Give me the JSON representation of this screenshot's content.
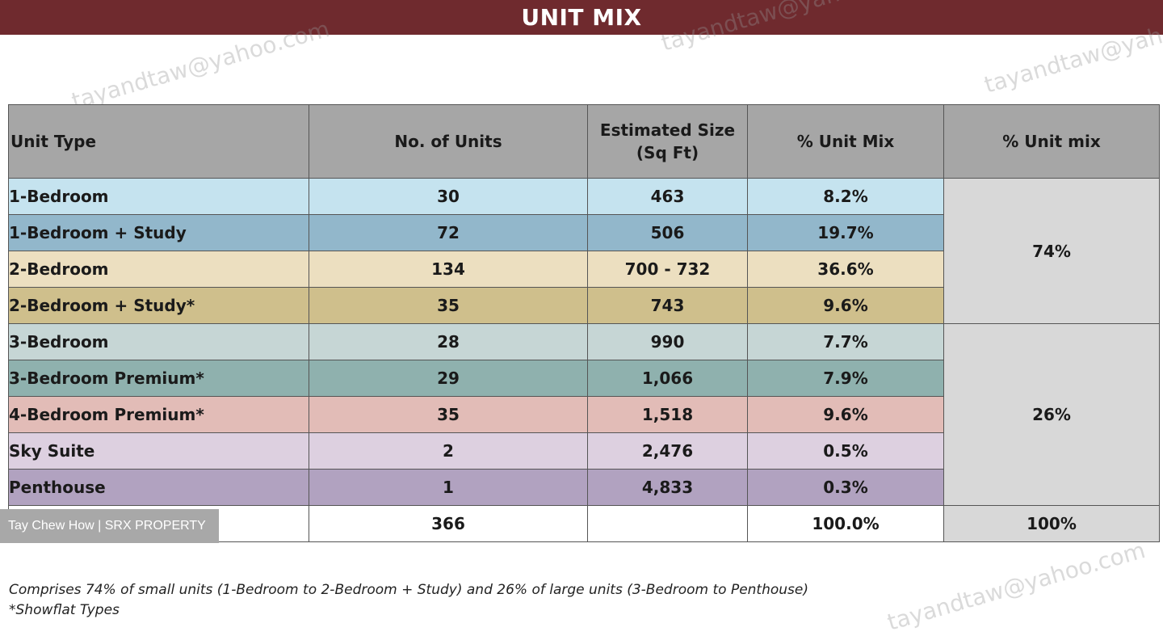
{
  "header": {
    "title": "UNIT MIX"
  },
  "table": {
    "headers": {
      "unit_type": "Unit Type",
      "no_of_units": "No. of Units",
      "size_line1": "Estimated Size",
      "size_line2": "(Sq Ft)",
      "pct_mix": "% Unit Mix",
      "pct_group": "% Unit mix"
    },
    "rows": [
      {
        "type": "1-Bedroom",
        "units": "30",
        "size": "463",
        "pct": "8.2%",
        "color": "#c5e3ef"
      },
      {
        "type": "1-Bedroom +  Study",
        "units": "72",
        "size": "506",
        "pct": "19.7%",
        "color": "#92b7cb"
      },
      {
        "type": "2-Bedroom",
        "units": "134",
        "size": "700 - 732",
        "pct": "36.6%",
        "color": "#ecdfc0"
      },
      {
        "type": "2-Bedroom + Study*",
        "units": "35",
        "size": "743",
        "pct": "9.6%",
        "color": "#cfbf8c"
      },
      {
        "type": "3-Bedroom",
        "units": "28",
        "size": "990",
        "pct": "7.7%",
        "color": "#c6d6d5"
      },
      {
        "type": "3-Bedroom Premium*",
        "units": "29",
        "size": "1,066",
        "pct": "7.9%",
        "color": "#8fb1ae"
      },
      {
        "type": "4-Bedroom Premium*",
        "units": "35",
        "size": "1,518",
        "pct": "9.6%",
        "color": "#e2bcb7"
      },
      {
        "type": "Sky Suite",
        "units": "2",
        "size": "2,476",
        "pct": "0.5%",
        "color": "#ddd0e0"
      },
      {
        "type": "Penthouse",
        "units": "1",
        "size": "4,833",
        "pct": "0.3%",
        "color": "#b1a2c0"
      }
    ],
    "groups": {
      "small": "74%",
      "large": "26%"
    },
    "total": {
      "units": "366",
      "pct": "100.0%",
      "group": "100%"
    }
  },
  "overlay_label": "Tay Chew How | SRX PROPERTY",
  "footnotes": {
    "note1": "Comprises 74% of small units (1-Bedroom to 2-Bedroom + Study) and 26% of large units (3-Bedroom to Penthouse)",
    "note2": "*Showflat Types"
  },
  "watermark_text": "tayandtaw@yahoo.com",
  "colors": {
    "header_bg": "#6f2a2e",
    "header_row_bg": "#a6a6a6",
    "group_bg": "#d8d8d8"
  }
}
